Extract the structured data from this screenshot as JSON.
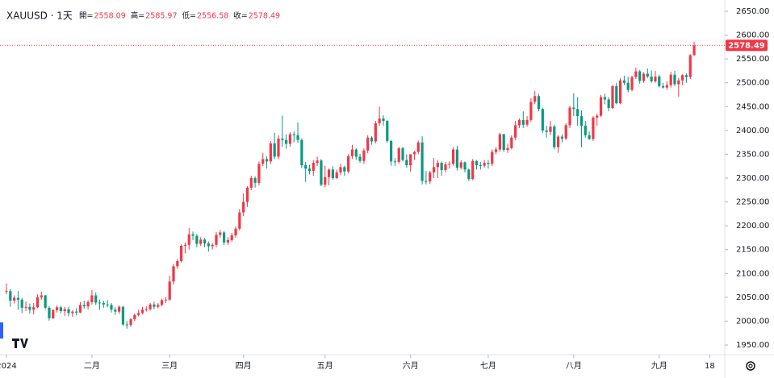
{
  "chart_data": {
    "type": "candlestick",
    "symbol": "XAUUSD · 1天",
    "ohlc_labels": [
      "開=",
      "高=",
      "低=",
      "收="
    ],
    "up_color": "#f23645",
    "down_color": "#089981",
    "ylim": [
      1950,
      2650
    ],
    "yticks": [
      {
        "value": 1950,
        "label": "1950.00"
      },
      {
        "value": 2000,
        "label": "2000.00"
      },
      {
        "value": 2050,
        "label": "2050.00"
      },
      {
        "value": 2100,
        "label": "2100.00"
      },
      {
        "value": 2150,
        "label": "2150.00"
      },
      {
        "value": 2200,
        "label": "2200.00"
      },
      {
        "value": 2250,
        "label": "2250.00"
      },
      {
        "value": 2300,
        "label": "2300.00"
      },
      {
        "value": 2350,
        "label": "2350.00"
      },
      {
        "value": 2400,
        "label": "2400.00"
      },
      {
        "value": 2450,
        "label": "2450.00"
      },
      {
        "value": 2500,
        "label": "2500.00"
      },
      {
        "value": 2550,
        "label": "2550.00"
      },
      {
        "value": 2600,
        "label": "2600.00"
      },
      {
        "value": 2650,
        "label": "2650.00"
      }
    ],
    "xticks": [
      {
        "value": 0,
        "label": "2024"
      },
      {
        "value": 22,
        "label": "二月"
      },
      {
        "value": 42,
        "label": "三月"
      },
      {
        "value": 61,
        "label": "四月"
      },
      {
        "value": 82,
        "label": "五月"
      },
      {
        "value": 104,
        "label": "六月"
      },
      {
        "value": 124,
        "label": "七月"
      },
      {
        "value": 146,
        "label": "八月"
      },
      {
        "value": 168,
        "label": "九月"
      },
      {
        "value": 181,
        "label": "18"
      }
    ],
    "candles": [
      [
        2062,
        2079,
        2056,
        2063
      ],
      [
        2063,
        2067,
        2030,
        2043
      ],
      [
        2043,
        2054,
        2037,
        2049
      ],
      [
        2049,
        2063,
        2024,
        2045
      ],
      [
        2045,
        2049,
        2017,
        2028
      ],
      [
        2028,
        2041,
        2021,
        2030
      ],
      [
        2030,
        2037,
        2016,
        2024
      ],
      [
        2024,
        2038,
        2014,
        2029
      ],
      [
        2029,
        2056,
        2027,
        2050
      ],
      [
        2050,
        2062,
        2045,
        2054
      ],
      [
        2054,
        2055,
        2025,
        2028
      ],
      [
        2028,
        2031,
        2001,
        2006
      ],
      [
        2006,
        2025,
        2004,
        2023
      ],
      [
        2023,
        2033,
        2018,
        2029
      ],
      [
        2029,
        2032,
        2016,
        2021
      ],
      [
        2021,
        2030,
        2011,
        2025
      ],
      [
        2025,
        2030,
        2010,
        2017
      ],
      [
        2017,
        2023,
        2009,
        2020
      ],
      [
        2020,
        2027,
        2012,
        2018
      ],
      [
        2018,
        2040,
        2017,
        2034
      ],
      [
        2034,
        2043,
        2026,
        2031
      ],
      [
        2031,
        2044,
        2024,
        2040
      ],
      [
        2040,
        2065,
        2035,
        2054
      ],
      [
        2054,
        2060,
        2034,
        2039
      ],
      [
        2039,
        2045,
        2024,
        2038
      ],
      [
        2038,
        2043,
        2028,
        2035
      ],
      [
        2035,
        2044,
        2029,
        2034
      ],
      [
        2034,
        2038,
        2018,
        2024
      ],
      [
        2024,
        2029,
        2013,
        2020
      ],
      [
        2020,
        2033,
        2015,
        2030
      ],
      [
        2030,
        2032,
        1990,
        1993
      ],
      [
        1993,
        2000,
        1984,
        1992
      ],
      [
        1992,
        2006,
        1988,
        2004
      ],
      [
        2004,
        2016,
        2000,
        2013
      ],
      [
        2013,
        2024,
        2010,
        2017
      ],
      [
        2017,
        2030,
        2014,
        2024
      ],
      [
        2024,
        2031,
        2020,
        2025
      ],
      [
        2025,
        2038,
        2022,
        2035
      ],
      [
        2035,
        2041,
        2025,
        2030
      ],
      [
        2030,
        2038,
        2027,
        2034
      ],
      [
        2034,
        2047,
        2031,
        2044
      ],
      [
        2044,
        2050,
        2038,
        2045
      ],
      [
        2045,
        2095,
        2043,
        2083
      ],
      [
        2083,
        2120,
        2077,
        2115
      ],
      [
        2115,
        2130,
        2110,
        2126
      ],
      [
        2126,
        2161,
        2123,
        2158
      ],
      [
        2158,
        2165,
        2142,
        2160
      ],
      [
        2160,
        2195,
        2150,
        2182
      ],
      [
        2182,
        2188,
        2170,
        2179
      ],
      [
        2179,
        2183,
        2155,
        2162
      ],
      [
        2162,
        2176,
        2158,
        2171
      ],
      [
        2171,
        2174,
        2155,
        2163
      ],
      [
        2163,
        2167,
        2146,
        2157
      ],
      [
        2157,
        2164,
        2150,
        2160
      ],
      [
        2160,
        2187,
        2155,
        2181
      ],
      [
        2181,
        2191,
        2175,
        2186
      ],
      [
        2186,
        2189,
        2160,
        2165
      ],
      [
        2165,
        2176,
        2160,
        2170
      ],
      [
        2170,
        2185,
        2166,
        2180
      ],
      [
        2180,
        2198,
        2175,
        2194
      ],
      [
        2194,
        2235,
        2190,
        2228
      ],
      [
        2228,
        2268,
        2220,
        2250
      ],
      [
        2250,
        2283,
        2240,
        2280
      ],
      [
        2280,
        2305,
        2275,
        2300
      ],
      [
        2300,
        2304,
        2280,
        2290
      ],
      [
        2290,
        2335,
        2285,
        2330
      ],
      [
        2330,
        2353,
        2325,
        2340
      ],
      [
        2340,
        2346,
        2320,
        2335
      ],
      [
        2335,
        2378,
        2330,
        2373
      ],
      [
        2373,
        2395,
        2340,
        2345
      ],
      [
        2345,
        2390,
        2340,
        2383
      ],
      [
        2383,
        2431,
        2365,
        2380
      ],
      [
        2380,
        2392,
        2362,
        2372
      ],
      [
        2372,
        2396,
        2366,
        2392
      ],
      [
        2392,
        2398,
        2375,
        2390
      ],
      [
        2390,
        2417,
        2374,
        2380
      ],
      [
        2380,
        2383,
        2321,
        2327
      ],
      [
        2327,
        2334,
        2292,
        2320
      ],
      [
        2320,
        2328,
        2308,
        2315
      ],
      [
        2315,
        2338,
        2305,
        2332
      ],
      [
        2332,
        2345,
        2325,
        2337
      ],
      [
        2337,
        2340,
        2283,
        2286
      ],
      [
        2286,
        2326,
        2281,
        2302
      ],
      [
        2302,
        2320,
        2285,
        2318
      ],
      [
        2318,
        2325,
        2296,
        2300
      ],
      [
        2300,
        2318,
        2298,
        2312
      ],
      [
        2312,
        2330,
        2306,
        2323
      ],
      [
        2323,
        2326,
        2305,
        2314
      ],
      [
        2314,
        2350,
        2310,
        2346
      ],
      [
        2346,
        2370,
        2340,
        2360
      ],
      [
        2360,
        2363,
        2338,
        2345
      ],
      [
        2345,
        2351,
        2332,
        2336
      ],
      [
        2336,
        2362,
        2330,
        2358
      ],
      [
        2358,
        2390,
        2352,
        2385
      ],
      [
        2385,
        2388,
        2370,
        2377
      ],
      [
        2377,
        2420,
        2373,
        2415
      ],
      [
        2415,
        2450,
        2410,
        2425
      ],
      [
        2425,
        2432,
        2410,
        2420
      ],
      [
        2420,
        2422,
        2374,
        2378
      ],
      [
        2378,
        2380,
        2326,
        2335
      ],
      [
        2335,
        2342,
        2325,
        2334
      ],
      [
        2334,
        2365,
        2330,
        2363
      ],
      [
        2363,
        2365,
        2335,
        2338
      ],
      [
        2338,
        2350,
        2322,
        2327
      ],
      [
        2327,
        2350,
        2314,
        2350
      ],
      [
        2350,
        2357,
        2338,
        2355
      ],
      [
        2355,
        2379,
        2350,
        2375
      ],
      [
        2375,
        2388,
        2287,
        2294
      ],
      [
        2294,
        2315,
        2287,
        2293
      ],
      [
        2293,
        2315,
        2288,
        2312
      ],
      [
        2312,
        2342,
        2300,
        2323
      ],
      [
        2323,
        2338,
        2300,
        2332
      ],
      [
        2332,
        2335,
        2305,
        2317
      ],
      [
        2317,
        2334,
        2312,
        2329
      ],
      [
        2329,
        2335,
        2320,
        2330
      ],
      [
        2330,
        2365,
        2326,
        2360
      ],
      [
        2360,
        2368,
        2316,
        2322
      ],
      [
        2322,
        2338,
        2318,
        2333
      ],
      [
        2333,
        2335,
        2312,
        2318
      ],
      [
        2318,
        2320,
        2294,
        2298
      ],
      [
        2298,
        2340,
        2296,
        2336
      ],
      [
        2336,
        2338,
        2318,
        2327
      ],
      [
        2327,
        2334,
        2318,
        2326
      ],
      [
        2326,
        2338,
        2322,
        2332
      ],
      [
        2332,
        2338,
        2320,
        2330
      ],
      [
        2330,
        2360,
        2325,
        2355
      ],
      [
        2355,
        2365,
        2350,
        2360
      ],
      [
        2360,
        2395,
        2355,
        2392
      ],
      [
        2392,
        2393,
        2355,
        2359
      ],
      [
        2359,
        2372,
        2353,
        2363
      ],
      [
        2363,
        2390,
        2360,
        2385
      ],
      [
        2385,
        2420,
        2380,
        2411
      ],
      [
        2411,
        2425,
        2405,
        2422
      ],
      [
        2422,
        2440,
        2405,
        2412
      ],
      [
        2412,
        2430,
        2408,
        2422
      ],
      [
        2422,
        2468,
        2418,
        2460
      ],
      [
        2460,
        2483,
        2455,
        2472
      ],
      [
        2472,
        2477,
        2440,
        2445
      ],
      [
        2445,
        2448,
        2395,
        2400
      ],
      [
        2400,
        2410,
        2385,
        2397
      ],
      [
        2397,
        2420,
        2390,
        2408
      ],
      [
        2408,
        2412,
        2360,
        2365
      ],
      [
        2365,
        2390,
        2353,
        2387
      ],
      [
        2387,
        2392,
        2375,
        2383
      ],
      [
        2383,
        2415,
        2380,
        2411
      ],
      [
        2411,
        2452,
        2405,
        2448
      ],
      [
        2448,
        2478,
        2430,
        2445
      ],
      [
        2445,
        2470,
        2410,
        2430
      ],
      [
        2430,
        2442,
        2365,
        2410
      ],
      [
        2410,
        2420,
        2385,
        2390
      ],
      [
        2390,
        2398,
        2380,
        2382
      ],
      [
        2382,
        2430,
        2378,
        2427
      ],
      [
        2427,
        2435,
        2410,
        2431
      ],
      [
        2431,
        2475,
        2428,
        2470
      ],
      [
        2470,
        2477,
        2455,
        2465
      ],
      [
        2465,
        2470,
        2440,
        2447
      ],
      [
        2447,
        2495,
        2445,
        2493
      ],
      [
        2493,
        2500,
        2455,
        2457
      ],
      [
        2457,
        2510,
        2455,
        2505
      ],
      [
        2505,
        2515,
        2495,
        2500
      ],
      [
        2500,
        2513,
        2480,
        2485
      ],
      [
        2485,
        2515,
        2482,
        2512
      ],
      [
        2512,
        2532,
        2508,
        2524
      ],
      [
        2524,
        2527,
        2498,
        2504
      ],
      [
        2504,
        2522,
        2500,
        2519
      ],
      [
        2519,
        2530,
        2510,
        2513
      ],
      [
        2513,
        2526,
        2500,
        2503
      ],
      [
        2503,
        2525,
        2500,
        2513
      ],
      [
        2513,
        2517,
        2490,
        2493
      ],
      [
        2493,
        2500,
        2488,
        2490
      ],
      [
        2490,
        2503,
        2485,
        2495
      ],
      [
        2495,
        2523,
        2490,
        2517
      ],
      [
        2517,
        2525,
        2493,
        2497
      ],
      [
        2497,
        2510,
        2471,
        2505
      ],
      [
        2505,
        2518,
        2495,
        2516
      ],
      [
        2516,
        2520,
        2500,
        2512
      ],
      [
        2512,
        2560,
        2508,
        2558
      ],
      [
        2558.09,
        2585.97,
        2556.58,
        2578.49
      ]
    ]
  }
}
